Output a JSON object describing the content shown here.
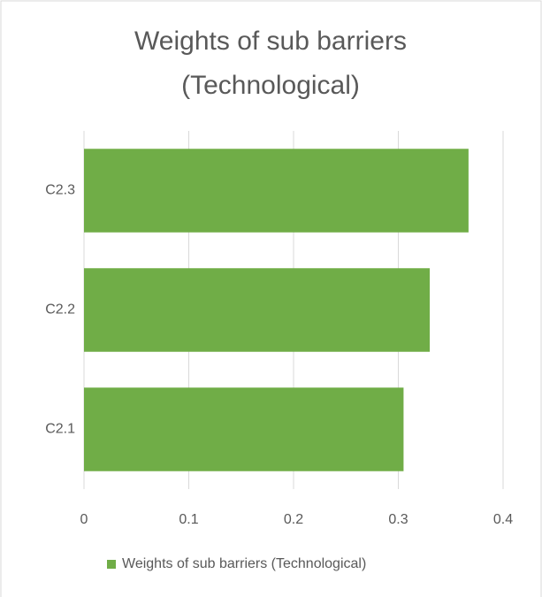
{
  "chart_data": {
    "type": "barh",
    "title": "Weights of sub barriers (Technological)",
    "categories": [
      "C2.1",
      "C2.2",
      "C2.3"
    ],
    "series": [
      {
        "name": "Weights of sub barriers (Technological)",
        "color": "#70ad47",
        "values": [
          0.305,
          0.33,
          0.367
        ]
      }
    ],
    "xlim": [
      0,
      0.4
    ],
    "xticks": [
      0,
      0.1,
      0.2,
      0.3,
      0.4
    ],
    "grid": true,
    "legend": "bottom"
  }
}
